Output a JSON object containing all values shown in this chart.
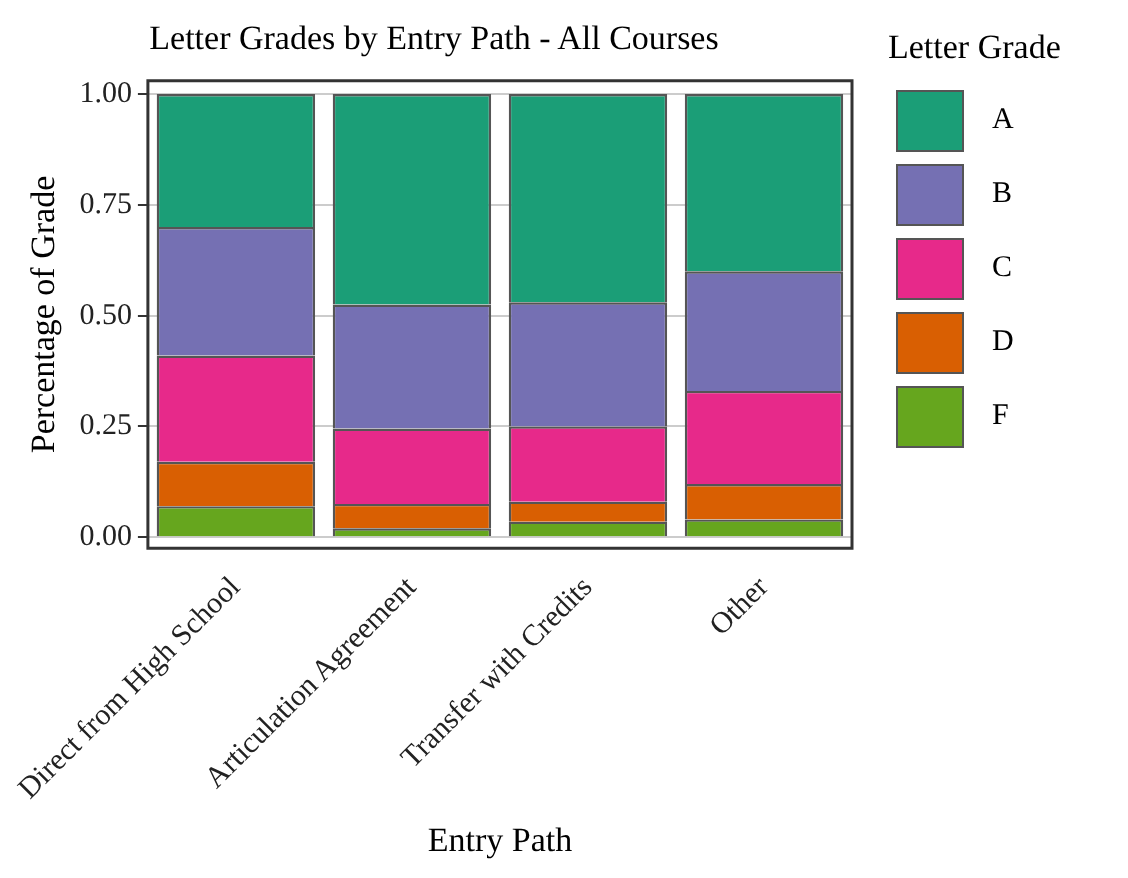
{
  "chart_data": {
    "type": "bar",
    "title": "Letter Grades by Entry Path - All Courses",
    "xlabel": "Entry Path",
    "ylabel": "Percentage of Grade",
    "legend_title": "Letter Grade",
    "categories": [
      "Direct from High School",
      "Articulation Agreement",
      "Transfer with Credits",
      "Other"
    ],
    "stacked": true,
    "series": [
      {
        "name": "F",
        "color": "#66a61e",
        "values": [
          0.07,
          0.02,
          0.035,
          0.04
        ]
      },
      {
        "name": "D",
        "color": "#d95f02",
        "values": [
          0.1,
          0.055,
          0.045,
          0.08
        ]
      },
      {
        "name": "C",
        "color": "#e7298a",
        "values": [
          0.24,
          0.17,
          0.17,
          0.21
        ]
      },
      {
        "name": "B",
        "color": "#7570b3",
        "values": [
          0.29,
          0.28,
          0.28,
          0.27
        ]
      },
      {
        "name": "A",
        "color": "#1b9e77",
        "values": [
          0.3,
          0.475,
          0.47,
          0.4
        ]
      }
    ],
    "ylim": [
      -0.025,
      1.03
    ],
    "yticks": [
      {
        "value": 0,
        "label": "0.00"
      },
      {
        "value": 0.25,
        "label": "0.25"
      },
      {
        "value": 0.5,
        "label": "0.50"
      },
      {
        "value": 0.75,
        "label": "0.75"
      },
      {
        "value": 1,
        "label": "1.00"
      }
    ],
    "grid": "y",
    "legend": "right"
  }
}
